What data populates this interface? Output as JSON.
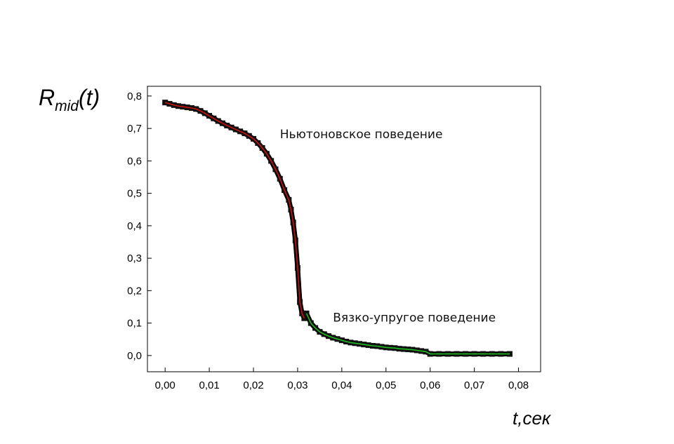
{
  "chart_data": {
    "type": "scatter",
    "xlabel": "t,сек",
    "ylabel_main": "R",
    "ylabel_sub": "mid",
    "ylabel_arg": "(t)",
    "xlim": [
      -0.004,
      0.085
    ],
    "ylim": [
      -0.05,
      0.83
    ],
    "x_ticks": [
      0.0,
      0.01,
      0.02,
      0.03,
      0.04,
      0.05,
      0.06,
      0.07,
      0.08
    ],
    "x_tick_labels": [
      "0,00",
      "0,01",
      "0,02",
      "0,03",
      "0,04",
      "0,05",
      "0,06",
      "0,07",
      "0,08"
    ],
    "y_ticks": [
      0.0,
      0.1,
      0.2,
      0.3,
      0.4,
      0.5,
      0.6,
      0.7,
      0.8
    ],
    "y_tick_labels": [
      "0,0",
      "0,1",
      "0,2",
      "0,3",
      "0,4",
      "0,5",
      "0,6",
      "0,7",
      "0,8"
    ],
    "grid": false,
    "annotations": [
      {
        "text": "Ньютоновское поведение",
        "x": 0.026,
        "y": 0.67
      },
      {
        "text": "Вязко-упругое поведение",
        "x": 0.038,
        "y": 0.105
      }
    ],
    "series": [
      {
        "color": "#cc1111",
        "x": [
          0.0,
          0.001,
          0.002,
          0.003,
          0.004,
          0.005,
          0.006,
          0.007,
          0.008,
          0.009,
          0.01,
          0.011,
          0.012,
          0.013,
          0.014,
          0.015,
          0.016,
          0.017,
          0.018,
          0.019,
          0.02,
          0.021,
          0.022,
          0.023,
          0.024,
          0.025,
          0.026,
          0.027,
          0.028,
          0.0285,
          0.029,
          0.0295,
          0.03,
          0.0305,
          0.031,
          0.0315
        ],
        "y": [
          0.78,
          0.776,
          0.772,
          0.769,
          0.767,
          0.765,
          0.763,
          0.76,
          0.754,
          0.747,
          0.739,
          0.731,
          0.723,
          0.716,
          0.709,
          0.703,
          0.697,
          0.691,
          0.685,
          0.677,
          0.668,
          0.655,
          0.64,
          0.622,
          0.6,
          0.574,
          0.545,
          0.51,
          0.48,
          0.45,
          0.41,
          0.355,
          0.27,
          0.165,
          0.13,
          0.115
        ]
      },
      {
        "color": "#22bb22",
        "x": [
          0.032,
          0.033,
          0.034,
          0.035,
          0.036,
          0.037,
          0.038,
          0.039,
          0.04,
          0.041,
          0.042,
          0.043,
          0.044,
          0.045,
          0.046,
          0.047,
          0.048,
          0.049,
          0.05,
          0.051,
          0.052,
          0.053,
          0.054,
          0.055,
          0.056,
          0.057,
          0.058,
          0.059,
          0.06,
          0.062,
          0.064,
          0.066,
          0.068,
          0.07,
          0.072,
          0.074,
          0.076,
          0.078
        ],
        "y": [
          0.13,
          0.1,
          0.085,
          0.073,
          0.066,
          0.06,
          0.055,
          0.051,
          0.047,
          0.043,
          0.04,
          0.038,
          0.036,
          0.034,
          0.032,
          0.03,
          0.029,
          0.027,
          0.025,
          0.024,
          0.023,
          0.021,
          0.02,
          0.019,
          0.018,
          0.016,
          0.014,
          0.012,
          0.005,
          0.005,
          0.005,
          0.005,
          0.005,
          0.005,
          0.005,
          0.005,
          0.005,
          0.005
        ]
      }
    ]
  }
}
